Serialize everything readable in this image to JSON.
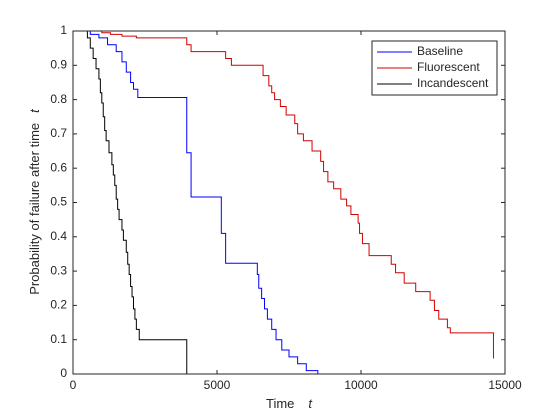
{
  "chart_data": {
    "type": "stairs",
    "xlabel": "Time",
    "xlabel_symbol": "t",
    "ylabel": "Probability of failure after time",
    "ylabel_symbol": "t",
    "xlim": [
      0,
      15000
    ],
    "xticks": [
      0,
      5000,
      10000,
      15000
    ],
    "ylim": [
      0,
      1
    ],
    "yticks": [
      0,
      0.1,
      0.2,
      0.3,
      0.4,
      0.5,
      0.6,
      0.7,
      0.8,
      0.9,
      1
    ],
    "grid": false,
    "legend": "northeast",
    "series": [
      {
        "name": "Baseline",
        "color": "#0000ff",
        "x": [
          400,
          600,
          900,
          1200,
          1500,
          1700,
          1850,
          2000,
          2100,
          2250,
          3950,
          4100,
          5150,
          5300,
          6400,
          6450,
          6550,
          6650,
          6750,
          6900,
          7050,
          7250,
          7500,
          7800,
          8100,
          8500
        ],
        "values": [
          1,
          0.99,
          0.98,
          0.96,
          0.94,
          0.91,
          0.88,
          0.85,
          0.83,
          0.806,
          0.645,
          0.516,
          0.41,
          0.323,
          0.29,
          0.25,
          0.22,
          0.19,
          0.16,
          0.13,
          0.1,
          0.07,
          0.05,
          0.03,
          0.01,
          0
        ]
      },
      {
        "name": "Fluorescent",
        "color": "#d00000",
        "x": [
          400,
          1000,
          1300,
          1700,
          2200,
          3950,
          4100,
          5300,
          5500,
          6600,
          6800,
          6900,
          7000,
          7200,
          7400,
          7700,
          7800,
          8000,
          8300,
          8600,
          8700,
          8850,
          9050,
          9300,
          9500,
          9650,
          9900,
          9950,
          10050,
          10280,
          11050,
          11200,
          11500,
          11900,
          12400,
          12550,
          12700,
          13000,
          13100,
          14600
        ],
        "values": [
          1,
          0.995,
          0.99,
          0.985,
          0.98,
          0.96,
          0.94,
          0.92,
          0.9,
          0.87,
          0.84,
          0.82,
          0.8,
          0.78,
          0.755,
          0.73,
          0.7,
          0.68,
          0.65,
          0.62,
          0.59,
          0.56,
          0.54,
          0.51,
          0.49,
          0.465,
          0.44,
          0.41,
          0.38,
          0.345,
          0.32,
          0.295,
          0.265,
          0.24,
          0.215,
          0.185,
          0.16,
          0.135,
          0.12,
          0.045
        ]
      },
      {
        "name": "Incandescent",
        "color": "#000000",
        "x": [
          400,
          500,
          600,
          700,
          800,
          900,
          950,
          1000,
          1050,
          1100,
          1150,
          1250,
          1350,
          1400,
          1450,
          1500,
          1550,
          1600,
          1700,
          1750,
          1850,
          1900,
          1950,
          2000,
          2050,
          2100,
          2150,
          2200,
          2300,
          3950
        ],
        "values": [
          1,
          0.98,
          0.95,
          0.92,
          0.89,
          0.86,
          0.82,
          0.79,
          0.75,
          0.71,
          0.68,
          0.645,
          0.61,
          0.58,
          0.55,
          0.51,
          0.48,
          0.45,
          0.42,
          0.39,
          0.355,
          0.32,
          0.29,
          0.255,
          0.225,
          0.19,
          0.16,
          0.13,
          0.1,
          0
        ]
      }
    ]
  }
}
